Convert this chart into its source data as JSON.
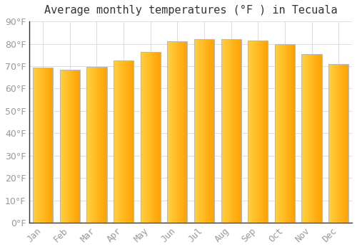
{
  "title": "Average monthly temperatures (°F ) in Tecuala",
  "months": [
    "Jan",
    "Feb",
    "Mar",
    "Apr",
    "May",
    "Jun",
    "Jul",
    "Aug",
    "Sep",
    "Oct",
    "Nov",
    "Dec"
  ],
  "values": [
    69.5,
    68.5,
    69.8,
    72.5,
    76.5,
    81.0,
    82.0,
    82.0,
    81.5,
    80.0,
    75.5,
    71.0
  ],
  "bar_color_left": "#FFD040",
  "bar_color_right": "#FFA000",
  "bar_edge_color": "#BBBBBB",
  "background_color": "#FFFFFF",
  "grid_color": "#DDDDDD",
  "ylim": [
    0,
    90
  ],
  "yticks": [
    0,
    10,
    20,
    30,
    40,
    50,
    60,
    70,
    80,
    90
  ],
  "title_fontsize": 11,
  "tick_fontsize": 9,
  "tick_label_color": "#999999",
  "axis_color": "#333333"
}
